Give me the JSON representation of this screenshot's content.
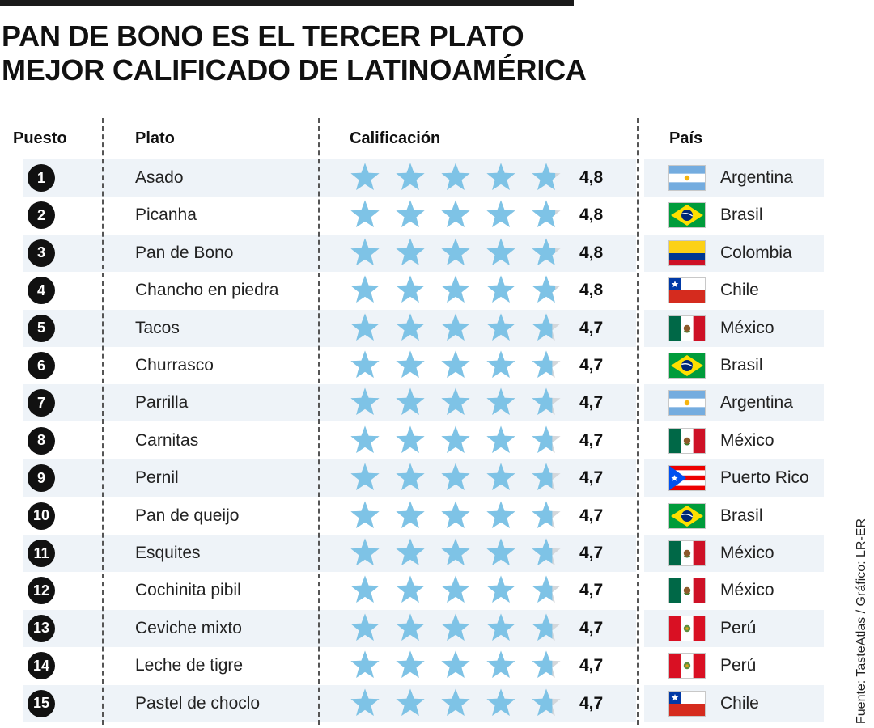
{
  "title_lines": [
    "PAN DE BONO ES EL TERCER PLATO",
    "MEJOR CALIFICADO DE LATINOAMÉRICA"
  ],
  "source": "Fuente: TasteAtlas  / Gráfico: LR-ER",
  "colors": {
    "star_fill": "#7ec3e6",
    "star_empty": "#d3d7db",
    "row_shade": "#eef3f8"
  },
  "chart_data": {
    "type": "table",
    "columns": [
      "Puesto",
      "Plato",
      "Calificación",
      "País"
    ],
    "max_rating": 5,
    "rows": [
      {
        "rank": "1",
        "dish": "Asado",
        "rating": 4.8,
        "rating_label": "4,8",
        "country": "Argentina",
        "flag": "argentina"
      },
      {
        "rank": "2",
        "dish": "Picanha",
        "rating": 4.8,
        "rating_label": "4,8",
        "country": "Brasil",
        "flag": "brasil"
      },
      {
        "rank": "3",
        "dish": "Pan de Bono",
        "rating": 4.8,
        "rating_label": "4,8",
        "country": "Colombia",
        "flag": "colombia"
      },
      {
        "rank": "4",
        "dish": "Chancho en piedra",
        "rating": 4.8,
        "rating_label": "4,8",
        "country": "Chile",
        "flag": "chile"
      },
      {
        "rank": "5",
        "dish": "Tacos",
        "rating": 4.7,
        "rating_label": "4,7",
        "country": "México",
        "flag": "mexico"
      },
      {
        "rank": "6",
        "dish": "Churrasco",
        "rating": 4.7,
        "rating_label": "4,7",
        "country": "Brasil",
        "flag": "brasil"
      },
      {
        "rank": "7",
        "dish": "Parrilla",
        "rating": 4.7,
        "rating_label": "4,7",
        "country": "Argentina",
        "flag": "argentina"
      },
      {
        "rank": "8",
        "dish": "Carnitas",
        "rating": 4.7,
        "rating_label": "4,7",
        "country": "México",
        "flag": "mexico"
      },
      {
        "rank": "9",
        "dish": "Pernil",
        "rating": 4.7,
        "rating_label": "4,7",
        "country": "Puerto Rico",
        "flag": "puerto-rico"
      },
      {
        "rank": "10",
        "dish": "Pan de queijo",
        "rating": 4.7,
        "rating_label": "4,7",
        "country": "Brasil",
        "flag": "brasil"
      },
      {
        "rank": "11",
        "dish": "Esquites",
        "rating": 4.7,
        "rating_label": "4,7",
        "country": "México",
        "flag": "mexico"
      },
      {
        "rank": "12",
        "dish": "Cochinita pibil",
        "rating": 4.7,
        "rating_label": "4,7",
        "country": "México",
        "flag": "mexico"
      },
      {
        "rank": "13",
        "dish": "Ceviche mixto",
        "rating": 4.7,
        "rating_label": "4,7",
        "country": "Perú",
        "flag": "peru"
      },
      {
        "rank": "14",
        "dish": "Leche de tigre",
        "rating": 4.7,
        "rating_label": "4,7",
        "country": "Perú",
        "flag": "peru"
      },
      {
        "rank": "15",
        "dish": "Pastel de choclo",
        "rating": 4.7,
        "rating_label": "4,7",
        "country": "Chile",
        "flag": "chile"
      }
    ]
  }
}
